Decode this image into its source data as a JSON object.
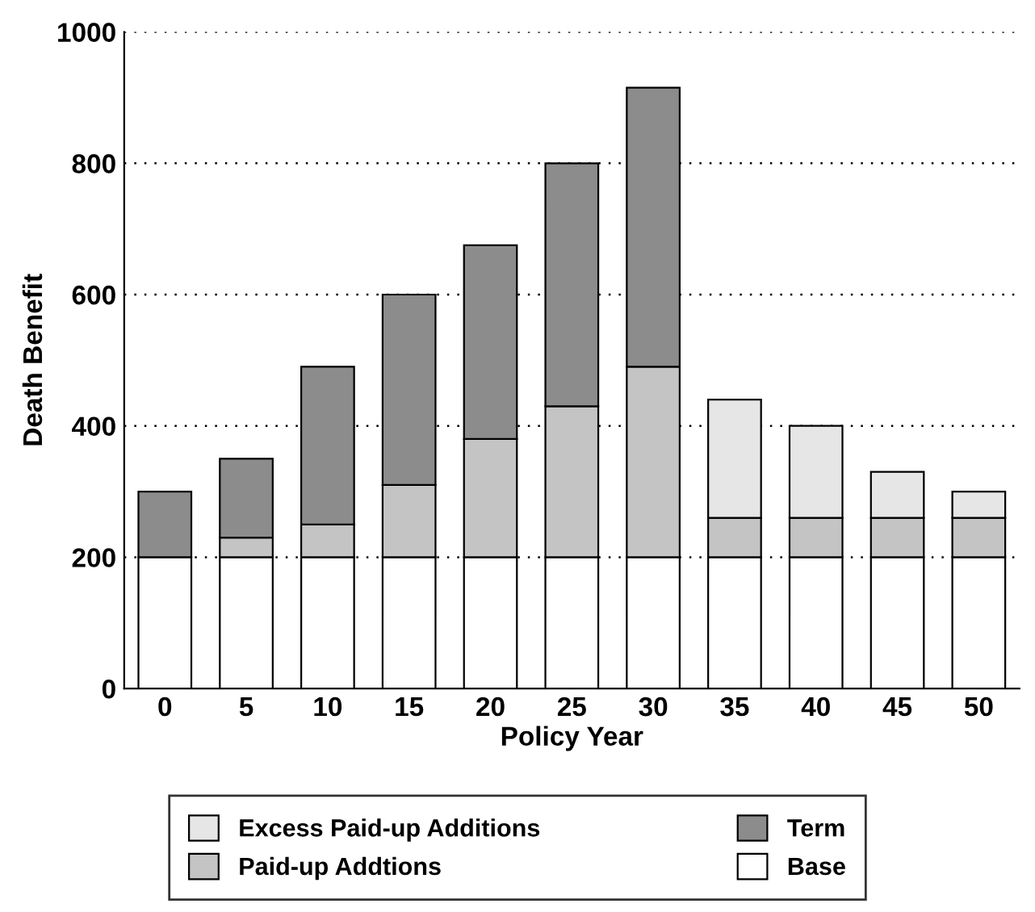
{
  "chart_data": {
    "type": "bar",
    "stacked": true,
    "xlabel": "Policy Year",
    "ylabel": "Death Benefit",
    "categories": [
      "0",
      "5",
      "10",
      "15",
      "20",
      "25",
      "30",
      "35",
      "40",
      "45",
      "50"
    ],
    "series": [
      {
        "name": "Base",
        "color": "#ffffff",
        "values": [
          200,
          200,
          200,
          200,
          200,
          200,
          200,
          200,
          200,
          200,
          200
        ]
      },
      {
        "name": "Paid-up Addtions",
        "color": "#c4c4c4",
        "values": [
          null,
          30,
          50,
          110,
          180,
          230,
          290,
          60,
          60,
          60,
          60
        ]
      },
      {
        "name": "Term",
        "color": "#8c8c8c",
        "values": [
          100,
          120,
          240,
          290,
          295,
          370,
          425,
          null,
          null,
          null,
          null
        ]
      },
      {
        "name": "Excess Paid-up Additions",
        "color": "#e6e6e6",
        "values": [
          null,
          null,
          null,
          null,
          null,
          null,
          null,
          180,
          140,
          70,
          40
        ]
      }
    ],
    "ylim": [
      0,
      1000
    ],
    "yticks": [
      0,
      200,
      400,
      600,
      800,
      1000
    ],
    "grid": "y",
    "legend": "bottom"
  }
}
